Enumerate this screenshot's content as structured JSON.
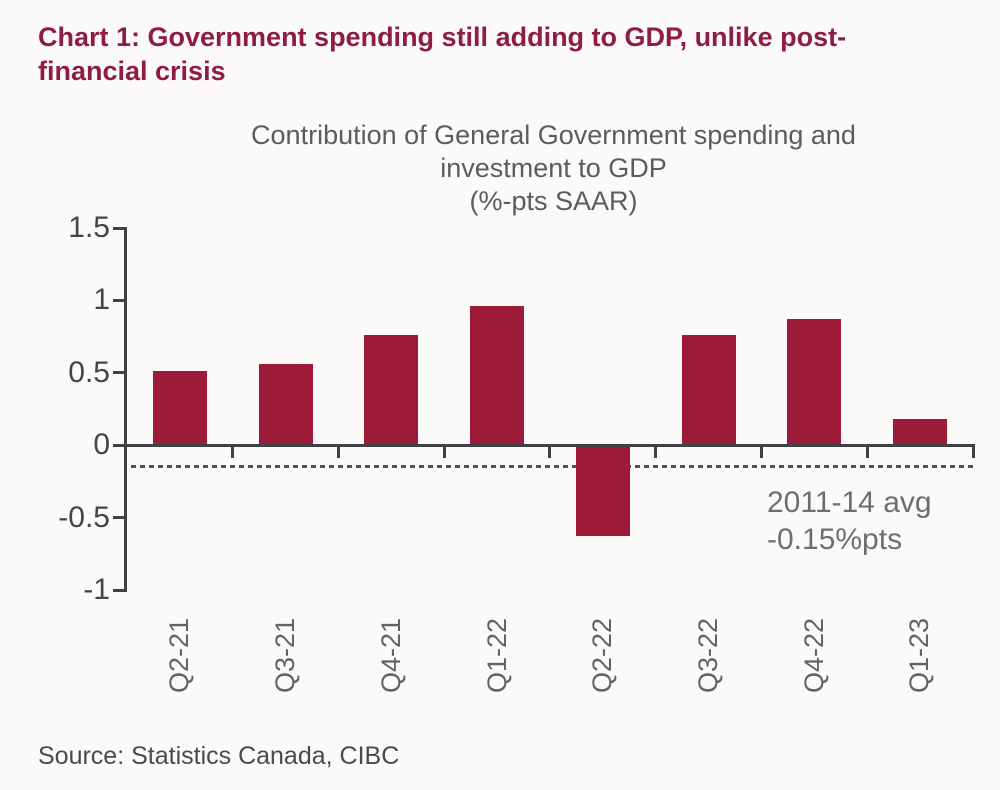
{
  "page": {
    "title": "Chart 1: Government spending still adding to GDP, unlike post-financial crisis",
    "title_lines": [
      "Chart 1: Government spending still adding to GDP, unlike post-",
      "financial crisis"
    ],
    "source": "Source: Statistics Canada, CIBC"
  },
  "colors": {
    "title": "#8e1d41",
    "bar": "#9c1b39",
    "axis": "#3f4245",
    "y_tick_label": "#434648",
    "subtitle": "#5a5d60",
    "x_tick_label": "#616467",
    "annotation": "#6c6f72",
    "dashed_line": "#515457",
    "source": "#484a4d",
    "background": "#fbfaf8"
  },
  "chart_data": {
    "type": "bar",
    "title": "Contribution of General Government spending and investment to GDP (%-pts SAAR)",
    "title_lines": [
      "Contribution of General Government spending and",
      "investment to GDP",
      "(%-pts SAAR)"
    ],
    "categories": [
      "Q2-21",
      "Q3-21",
      "Q4-21",
      "Q1-22",
      "Q2-22",
      "Q3-22",
      "Q4-22",
      "Q1-23"
    ],
    "values": [
      0.51,
      0.56,
      0.76,
      0.96,
      -0.63,
      0.76,
      0.87,
      0.18
    ],
    "xlabel": "",
    "ylabel": "",
    "ylim": [
      -1,
      1.5
    ],
    "y_ticks": [
      1.5,
      1,
      0.5,
      0,
      -0.5,
      -1
    ],
    "y_tick_labels": [
      "1.5",
      "1",
      "0.5",
      "0",
      "-0.5",
      "-1"
    ],
    "grid": false,
    "legend": "none",
    "reference_line": {
      "value": -0.15,
      "style": "dashed",
      "label": "2011-14 avg -0.15%pts",
      "label_lines": [
        "2011-14 avg",
        "-0.15%pts"
      ]
    }
  }
}
